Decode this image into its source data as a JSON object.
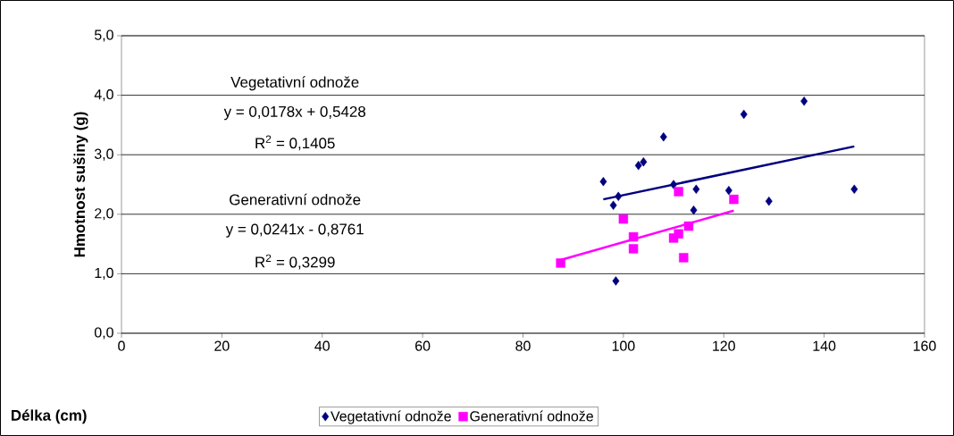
{
  "chart_data": {
    "type": "scatter",
    "xlabel": "Délka (cm)",
    "ylabel": "Hmotnost sušiny (g)",
    "xlim": [
      0,
      160
    ],
    "xticks": [
      0,
      20,
      40,
      60,
      80,
      100,
      120,
      140,
      160
    ],
    "ylim": [
      0,
      5
    ],
    "yticks": [
      {
        "value": 0,
        "label": "0,0"
      },
      {
        "value": 1,
        "label": "1,0"
      },
      {
        "value": 2,
        "label": "2,0"
      },
      {
        "value": 3,
        "label": "3,0"
      },
      {
        "value": 4,
        "label": "4,0"
      },
      {
        "value": 5,
        "label": "5,0"
      }
    ],
    "grid": "y",
    "legend": "bottom",
    "series": [
      {
        "name": "Vegetativní odnože",
        "color": "#000080",
        "marker": "diamond",
        "x": [
          96,
          98,
          98.5,
          99,
          103,
          104,
          108,
          110,
          114,
          114.5,
          121,
          124,
          129,
          136,
          146
        ],
        "values": [
          2.55,
          2.15,
          0.88,
          2.3,
          2.82,
          2.88,
          3.3,
          2.5,
          2.07,
          2.42,
          2.4,
          3.68,
          2.22,
          3.9,
          2.42
        ]
      },
      {
        "name": "Generativní odnože",
        "color": "#ff00ff",
        "marker": "square",
        "x": [
          87.5,
          100,
          102,
          102,
          110,
          111,
          111,
          112,
          113,
          122
        ],
        "values": [
          1.18,
          1.92,
          1.62,
          1.42,
          1.6,
          1.67,
          2.38,
          1.27,
          1.8,
          2.25
        ]
      },
      {
        "type": "line",
        "color": "#000080",
        "marker": "none",
        "x": [
          96,
          146
        ],
        "values": [
          2.25,
          3.14
        ]
      },
      {
        "type": "line",
        "color": "#ff00ff",
        "marker": "none",
        "x": [
          87.5,
          122
        ],
        "values": [
          1.23,
          2.06
        ]
      }
    ],
    "annotations": [
      "Vegetativní odnože",
      "y = 0,0178x + 0,5428",
      "R$^{2}$ = 0,1405",
      "Generativní odnože",
      "y = 0,0241x - 0,8761",
      "R$^{2}$ = 0,3299"
    ]
  }
}
